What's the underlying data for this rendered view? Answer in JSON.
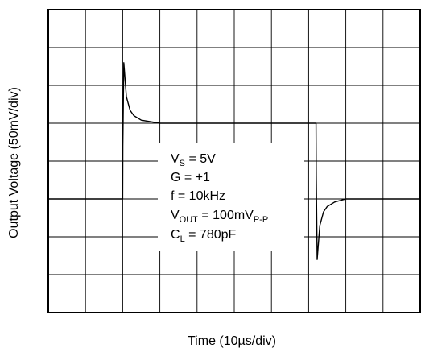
{
  "chart_data": {
    "type": "line",
    "xlabel": "Time (10µs/div)",
    "ylabel": "Output Voltage (50mV/div)",
    "x_units": "µs",
    "y_units": "mV",
    "x_range": [
      0,
      100
    ],
    "y_range": [
      -200,
      200
    ],
    "x_per_div": 10,
    "y_per_div": 50,
    "grid": true,
    "series": [
      {
        "x": [
          0,
          20,
          20.05,
          20.3,
          21,
          22,
          23,
          25,
          30,
          50,
          72,
          72.05,
          72.3,
          73,
          74,
          75,
          77,
          80,
          100
        ],
        "y": [
          -50,
          -50,
          20,
          130,
          85,
          67,
          60,
          54,
          50,
          50,
          50,
          -20,
          -130,
          -85,
          -67,
          -60,
          -54,
          -50,
          -50
        ]
      }
    ],
    "annotations": {
      "vs": {
        "main": "V",
        "sub": "S",
        "rest": " = 5V"
      },
      "gain": {
        "text": "G = +1"
      },
      "freq": {
        "text": "f = 10kHz"
      },
      "vout": {
        "main": "V",
        "sub": "OUT",
        "rest": " = 100mV",
        "sub2": "P-P"
      },
      "cl": {
        "main": "C",
        "sub": "L",
        "rest": " = 780pF"
      }
    }
  },
  "colors": {
    "trace": "#000000",
    "grid": "#000000",
    "background": "#ffffff"
  }
}
